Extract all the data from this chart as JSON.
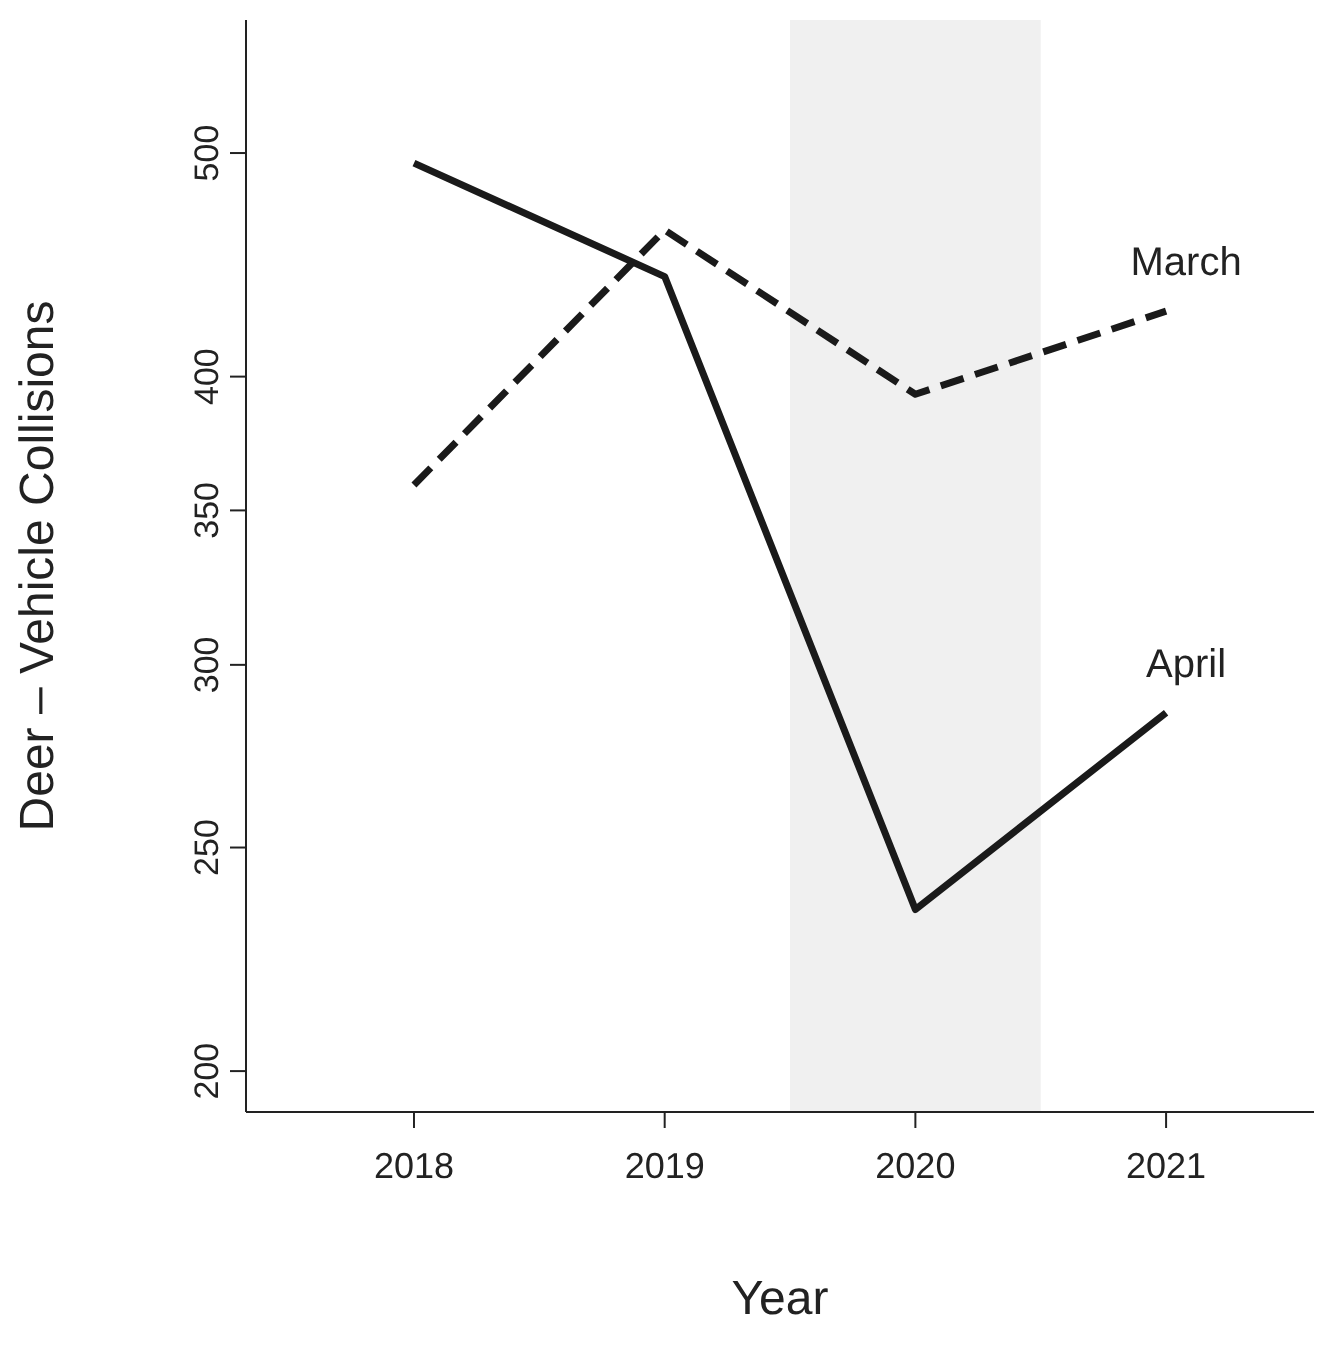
{
  "chart_data": {
    "type": "line",
    "xlabel": "Year",
    "ylabel": "Deer – Vehicle Collisions",
    "x": [
      2018,
      2019,
      2020,
      2021
    ],
    "series": [
      {
        "name": "April",
        "color": "#1a1a1a",
        "line_style": "solid",
        "values": [
          495,
          442,
          235,
          286
        ]
      },
      {
        "name": "March",
        "color": "#1a1a1a",
        "line_style": "dashed",
        "values": [
          359,
          463,
          393,
          427
        ]
      }
    ],
    "log": "y",
    "xlim": [
      2017.33,
      2021.59
    ],
    "xticks": [
      2018,
      2019,
      2020,
      2021
    ],
    "ylim": [
      192,
      571
    ],
    "yticks": [
      200,
      250,
      300,
      350,
      400,
      500
    ],
    "bands": [
      {
        "axis": "x",
        "from": 2019.5,
        "to": 2020.5,
        "color": "#f0f0f0"
      }
    ],
    "marker": "none"
  }
}
